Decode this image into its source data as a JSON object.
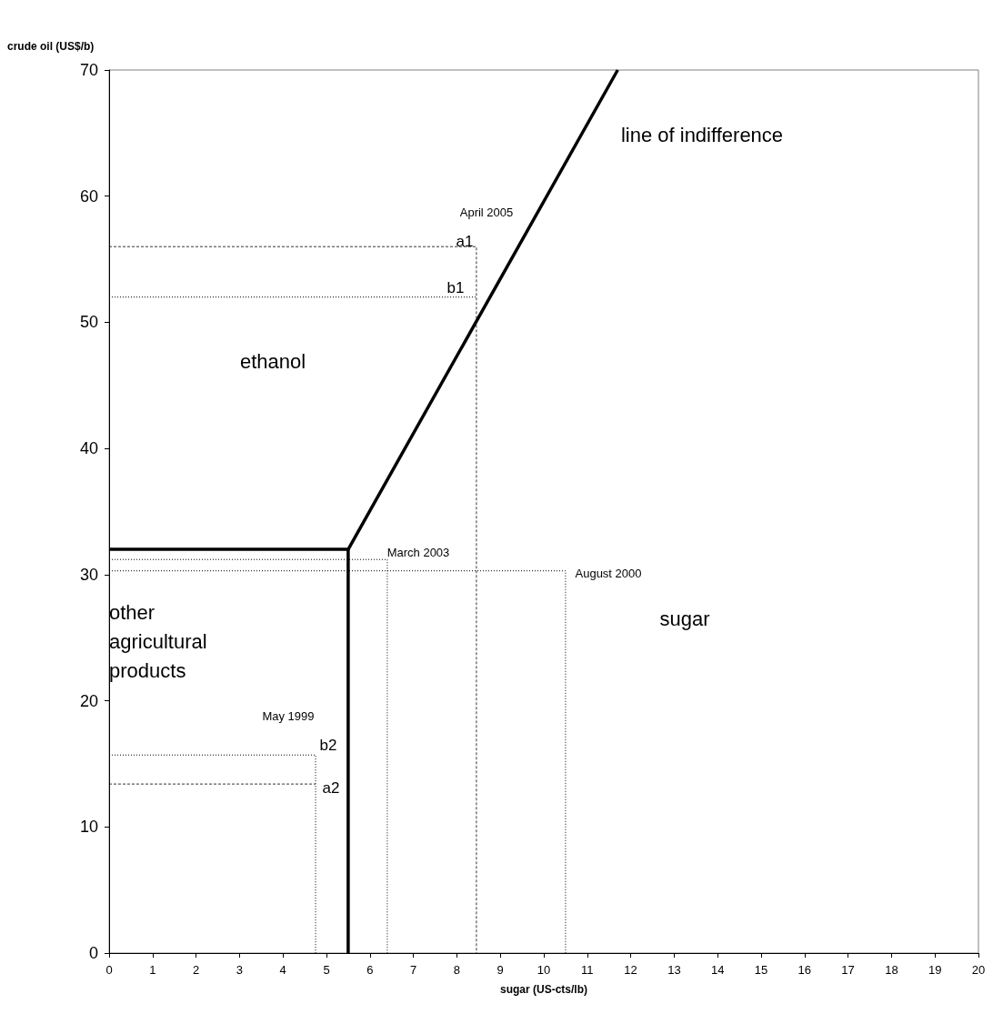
{
  "chart_data": {
    "type": "line",
    "xlabel": "sugar (US-cts/lb)",
    "ylabel": "crude oil (US$/b)",
    "xlim": [
      0,
      20
    ],
    "xticks": [
      0,
      1,
      2,
      3,
      4,
      5,
      6,
      7,
      8,
      9,
      10,
      11,
      12,
      13,
      14,
      15,
      16,
      17,
      18,
      19,
      20
    ],
    "ylim": [
      0,
      70
    ],
    "yticks": [
      0,
      10,
      20,
      30,
      40,
      50,
      60,
      70
    ],
    "grid": false,
    "marker": "none",
    "series": [
      {
        "color": "#000000",
        "line_style": "solid",
        "x": [
          0,
          5.5,
          11.7
        ],
        "values": [
          32,
          32,
          70
        ]
      },
      {
        "color": "#000000",
        "line_style": "solid",
        "x": [
          5.5,
          5.5
        ],
        "values": [
          32,
          0
        ]
      },
      {
        "color": "#000000",
        "line_style": "dashed",
        "x": [
          0,
          8.45,
          8.45
        ],
        "values": [
          56,
          56,
          0
        ]
      },
      {
        "color": "#000000",
        "line_style": "dotted",
        "x": [
          0,
          8.45
        ],
        "values": [
          52,
          52
        ]
      },
      {
        "color": "#000000",
        "line_style": "dotted",
        "x": [
          0,
          6.4,
          6.4
        ],
        "values": [
          31.2,
          31.2,
          0
        ]
      },
      {
        "color": "#000000",
        "line_style": "dotted",
        "x": [
          0,
          10.5,
          10.5
        ],
        "values": [
          30.3,
          30.3,
          0
        ]
      },
      {
        "color": "#000000",
        "line_style": "dotted",
        "x": [
          0,
          4.75,
          4.75
        ],
        "values": [
          15.7,
          15.7,
          0
        ]
      },
      {
        "color": "#000000",
        "line_style": "dashed",
        "x": [
          0,
          4.75
        ],
        "values": [
          13.4,
          13.4
        ]
      }
    ],
    "annotations": [
      "line of indifference",
      "April 2005",
      "a1",
      "b1",
      "ethanol",
      "March 2003",
      "August 2000",
      "sugar",
      "other agricultural products",
      "May 1999",
      "b2",
      "a2"
    ]
  }
}
